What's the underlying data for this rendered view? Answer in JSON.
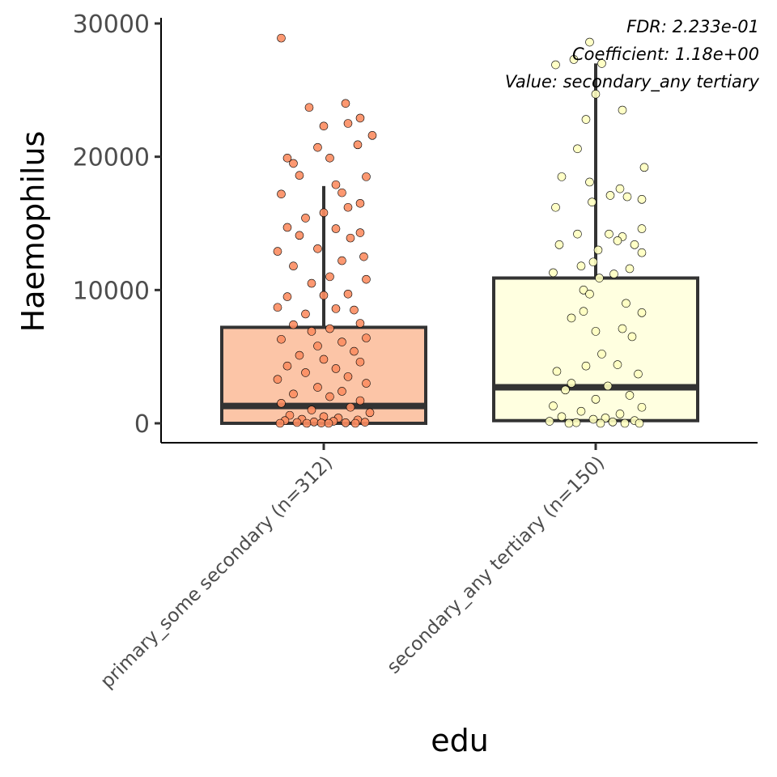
{
  "chart_data": {
    "type": "box",
    "xlabel": "edu",
    "ylabel": "Haemophilus",
    "ylim": [
      -1400,
      30300
    ],
    "yticks": [
      0,
      10000,
      20000,
      30000
    ],
    "ytick_labels": [
      "0",
      "10000",
      "20000",
      "30000"
    ],
    "categories": [
      "primary_some secondary (n=312)",
      "secondary_any tertiary (n=150)"
    ],
    "annotations": [
      "FDR: 2.233e-01",
      "Coefficient: 1.18e+00",
      "Value: secondary_any tertiary"
    ],
    "series": [
      {
        "category": "primary_some secondary (n=312)",
        "n": 312,
        "color": "#fcc5a7",
        "point_color": "#fc8d62",
        "box": {
          "whisker_low": 0,
          "q1": 0,
          "median": 1300,
          "q3": 7200,
          "whisker_high": 17800
        },
        "points_sample": [
          [
            -0.35,
            28900
          ],
          [
            0.18,
            24000
          ],
          [
            -0.12,
            23700
          ],
          [
            0.3,
            22900
          ],
          [
            0.2,
            22500
          ],
          [
            0.0,
            22300
          ],
          [
            0.4,
            21600
          ],
          [
            -0.05,
            20700
          ],
          [
            0.28,
            20900
          ],
          [
            -0.3,
            19900
          ],
          [
            0.05,
            19900
          ],
          [
            -0.25,
            19500
          ],
          [
            0.35,
            18500
          ],
          [
            -0.2,
            18600
          ],
          [
            0.1,
            17900
          ],
          [
            0.15,
            17300
          ],
          [
            -0.35,
            17200
          ],
          [
            0.3,
            16500
          ],
          [
            0.2,
            16200
          ],
          [
            -0.15,
            15400
          ],
          [
            0.0,
            15800
          ],
          [
            0.3,
            14300
          ],
          [
            -0.3,
            14700
          ],
          [
            0.1,
            14600
          ],
          [
            -0.2,
            14100
          ],
          [
            0.22,
            13900
          ],
          [
            -0.05,
            13100
          ],
          [
            0.33,
            12500
          ],
          [
            -0.38,
            12900
          ],
          [
            -0.25,
            11800
          ],
          [
            0.15,
            12200
          ],
          [
            0.35,
            10800
          ],
          [
            0.05,
            11000
          ],
          [
            -0.1,
            10500
          ],
          [
            -0.3,
            9500
          ],
          [
            0.2,
            9700
          ],
          [
            0.0,
            9600
          ],
          [
            -0.38,
            8700
          ],
          [
            0.25,
            8500
          ],
          [
            -0.15,
            8200
          ],
          [
            0.1,
            8600
          ],
          [
            0.3,
            7500
          ],
          [
            -0.25,
            7400
          ],
          [
            0.05,
            7100
          ],
          [
            -0.1,
            6900
          ],
          [
            0.35,
            6400
          ],
          [
            -0.35,
            6300
          ],
          [
            0.15,
            6100
          ],
          [
            -0.05,
            5800
          ],
          [
            0.25,
            5400
          ],
          [
            -0.2,
            5100
          ],
          [
            0.0,
            4800
          ],
          [
            0.3,
            4600
          ],
          [
            -0.3,
            4300
          ],
          [
            0.1,
            4100
          ],
          [
            -0.15,
            3800
          ],
          [
            0.2,
            3500
          ],
          [
            -0.38,
            3300
          ],
          [
            0.35,
            3000
          ],
          [
            -0.05,
            2700
          ],
          [
            0.15,
            2400
          ],
          [
            -0.25,
            2200
          ],
          [
            0.05,
            2000
          ],
          [
            0.3,
            1700
          ],
          [
            -0.35,
            1500
          ],
          [
            0.22,
            1200
          ],
          [
            -0.1,
            1000
          ],
          [
            0.38,
            800
          ],
          [
            -0.28,
            600
          ],
          [
            0.0,
            500
          ],
          [
            0.12,
            400
          ],
          [
            -0.18,
            300
          ],
          [
            0.28,
            250
          ],
          [
            -0.32,
            200
          ],
          [
            0.08,
            150
          ],
          [
            -0.08,
            100
          ],
          [
            0.34,
            80
          ],
          [
            -0.22,
            60
          ],
          [
            0.18,
            40
          ],
          [
            -0.02,
            20
          ],
          [
            0.26,
            0
          ],
          [
            -0.36,
            0
          ],
          [
            0.04,
            0
          ],
          [
            -0.14,
            0
          ]
        ]
      },
      {
        "category": "secondary_any tertiary (n=150)",
        "n": 150,
        "color": "#ffffe0",
        "point_color": "#ffffc0",
        "box": {
          "whisker_low": 200,
          "q1": 200,
          "median": 2700,
          "q3": 10900,
          "whisker_high": 27000
        },
        "points_sample": [
          [
            -0.05,
            28600
          ],
          [
            -0.18,
            27300
          ],
          [
            -0.33,
            26900
          ],
          [
            0.05,
            27000
          ],
          [
            0.0,
            24700
          ],
          [
            0.22,
            23500
          ],
          [
            -0.08,
            22800
          ],
          [
            -0.15,
            20600
          ],
          [
            0.4,
            19200
          ],
          [
            -0.28,
            18500
          ],
          [
            -0.05,
            18100
          ],
          [
            0.12,
            17100
          ],
          [
            0.2,
            17600
          ],
          [
            0.26,
            17000
          ],
          [
            0.38,
            16800
          ],
          [
            -0.03,
            16600
          ],
          [
            -0.33,
            16200
          ],
          [
            0.38,
            14600
          ],
          [
            0.11,
            14200
          ],
          [
            0.22,
            14000
          ],
          [
            -0.15,
            14200
          ],
          [
            0.18,
            13700
          ],
          [
            0.32,
            13400
          ],
          [
            -0.3,
            13400
          ],
          [
            0.38,
            12800
          ],
          [
            -0.02,
            12100
          ],
          [
            0.28,
            11600
          ],
          [
            0.02,
            13000
          ],
          [
            -0.12,
            11800
          ],
          [
            0.03,
            10900
          ],
          [
            0.15,
            11200
          ],
          [
            -0.35,
            11300
          ],
          [
            -0.1,
            10000
          ],
          [
            -0.05,
            9700
          ],
          [
            0.25,
            9000
          ],
          [
            0.38,
            8300
          ],
          [
            -0.1,
            8400
          ],
          [
            -0.2,
            7900
          ],
          [
            0.22,
            7100
          ],
          [
            0.3,
            6500
          ],
          [
            0.0,
            6900
          ],
          [
            -0.32,
            3900
          ],
          [
            0.05,
            5200
          ],
          [
            0.18,
            4400
          ],
          [
            -0.08,
            4300
          ],
          [
            0.35,
            3700
          ],
          [
            -0.2,
            3000
          ],
          [
            0.1,
            2800
          ],
          [
            -0.25,
            2500
          ],
          [
            0.28,
            2100
          ],
          [
            0.0,
            1800
          ],
          [
            -0.35,
            1300
          ],
          [
            0.38,
            1200
          ],
          [
            -0.12,
            900
          ],
          [
            0.2,
            700
          ],
          [
            -0.28,
            500
          ],
          [
            0.08,
            400
          ],
          [
            -0.02,
            300
          ],
          [
            0.32,
            200
          ],
          [
            -0.38,
            150
          ],
          [
            0.14,
            100
          ],
          [
            -0.16,
            50
          ],
          [
            0.24,
            0
          ],
          [
            -0.22,
            0
          ],
          [
            0.04,
            0
          ],
          [
            0.36,
            0
          ]
        ]
      }
    ]
  }
}
